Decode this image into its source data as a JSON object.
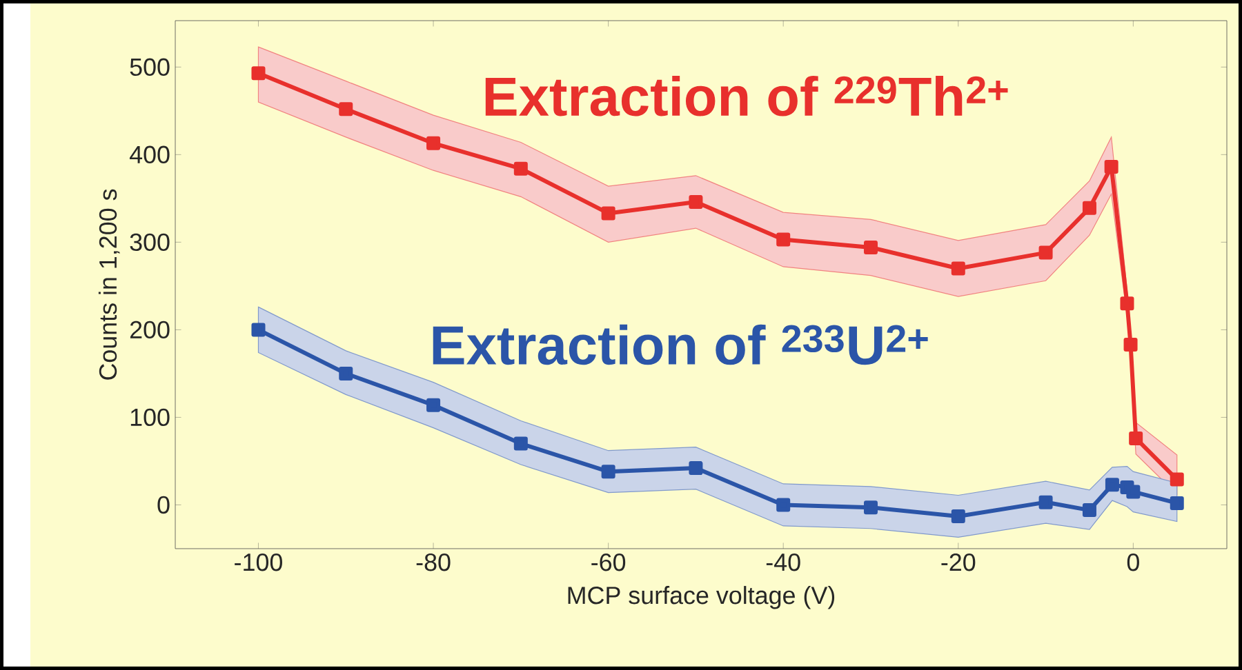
{
  "chart_data": {
    "type": "line",
    "xlabel": "MCP surface voltage (V)",
    "ylabel": "Counts in 1,200 s",
    "xlim": [
      -109.5,
      10.7
    ],
    "ylim": [
      -50,
      553
    ],
    "xticks": [
      -100,
      -80,
      -60,
      -40,
      -20,
      0
    ],
    "yticks": [
      0,
      100,
      200,
      300,
      400,
      500
    ],
    "marker": "square",
    "line_style": "solid",
    "grid": false,
    "series": [
      {
        "name": "Extraction of $^{229}$Th$^{2+}$",
        "color": "#e8302c",
        "x": [
          -100,
          -90,
          -80,
          -70,
          -60,
          -50,
          -40,
          -30,
          -20,
          -10,
          -5,
          -2.5,
          -0.7,
          -0.3,
          0.3,
          5
        ],
        "values": [
          493,
          452,
          413,
          384,
          333,
          346,
          303,
          294,
          270,
          288,
          339,
          386,
          230,
          183,
          76,
          29
        ],
        "lower": [
          460,
          420,
          382,
          352,
          300,
          316,
          272,
          262,
          238,
          256,
          308,
          355,
          215,
          168,
          58,
          12
        ],
        "upper": [
          523,
          484,
          445,
          414,
          364,
          376,
          334,
          326,
          302,
          320,
          370,
          420,
          245,
          198,
          94,
          57
        ]
      },
      {
        "name": "Extraction of $^{233}$U$^{2+}$",
        "color": "#2b55a8",
        "x": [
          -100,
          -90,
          -80,
          -70,
          -60,
          -50,
          -40,
          -30,
          -20,
          -10,
          -5,
          -2.4,
          -0.7,
          0,
          5
        ],
        "values": [
          200,
          150,
          114,
          70,
          38,
          42,
          0,
          -3,
          -13,
          3,
          -6,
          23,
          20,
          15,
          2
        ],
        "lower": [
          174,
          126,
          88,
          46,
          14,
          18,
          -24,
          -27,
          -37,
          -21,
          -28,
          5,
          -2,
          -8,
          -19
        ],
        "upper": [
          226,
          176,
          140,
          96,
          62,
          66,
          24,
          21,
          11,
          27,
          17,
          43,
          44,
          38,
          25
        ]
      }
    ]
  }
}
